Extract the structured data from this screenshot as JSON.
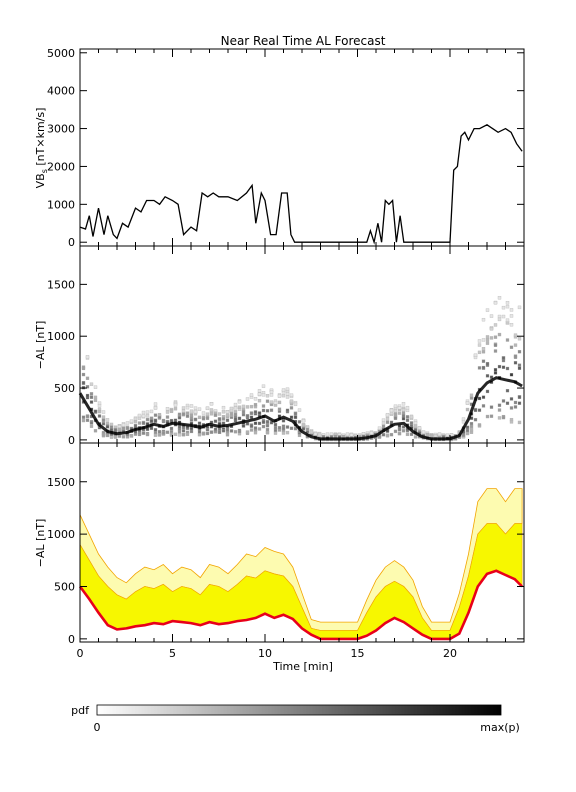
{
  "title": "Near Real Time AL Forecast",
  "x_axis": {
    "label": "Time [min]",
    "ticks": [
      "0",
      "5",
      "10",
      "15",
      "20"
    ],
    "tick_values": [
      0,
      5,
      10,
      15,
      20
    ],
    "range": [
      0,
      24
    ]
  },
  "panel1": {
    "ylabel_main": "VB",
    "ylabel_sub": "s",
    "ylabel_rest": " [nT×km/s]",
    "yticks": [
      "0",
      "1000",
      "2000",
      "3000",
      "4000",
      "5000"
    ],
    "ytick_values": [
      0,
      1000,
      2000,
      3000,
      4000,
      5000
    ],
    "ylim": [
      -100,
      5100
    ]
  },
  "panel2": {
    "ylabel": "−AL [nT]",
    "yticks": [
      "0",
      "500",
      "1000",
      "1500"
    ],
    "ytick_values": [
      0,
      500,
      1000,
      1500
    ],
    "ylim": [
      -30,
      1870
    ]
  },
  "panel3": {
    "ylabel": "−AL [nT]",
    "yticks": [
      "0",
      "500",
      "1000",
      "1500"
    ],
    "ytick_values": [
      0,
      500,
      1000,
      1500
    ],
    "ylim": [
      -30,
      1870
    ]
  },
  "colorbar": {
    "label": "pdf",
    "min_label": "0",
    "max_label": "max(p)"
  },
  "colors": {
    "median": "#e8001a",
    "band": "#f7f700",
    "band_edge": "#f2a400",
    "outer_band": "#fdfbb0",
    "vbs": "#000000"
  },
  "chart_data": [
    {
      "type": "line",
      "title": "Near Real Time AL Forecast",
      "xlabel": "Time [min]",
      "ylabel": "VBs [nT×km/s]",
      "xlim": [
        0,
        24
      ],
      "ylim": [
        -100,
        5100
      ],
      "series": [
        {
          "x": [
            0,
            0.3,
            0.5,
            0.7,
            1.0,
            1.3,
            1.5,
            1.8,
            2.0,
            2.3,
            2.6,
            3.0,
            3.3,
            3.6,
            4.0,
            4.3,
            4.6,
            5.0,
            5.3,
            5.6,
            6.0,
            6.3,
            6.6,
            6.9,
            7.2,
            7.5,
            8.0,
            8.5,
            9.0,
            9.3,
            9.5,
            9.8,
            10.0,
            10.3,
            10.6,
            10.9,
            11.2,
            11.4,
            11.6,
            12.0,
            13,
            14,
            15,
            15.5,
            15.7,
            15.9,
            16.1,
            16.3,
            16.5,
            16.7,
            16.9,
            17.1,
            17.3,
            17.5,
            18,
            19,
            19.5,
            19.7,
            20.0,
            20.2,
            20.4,
            20.6,
            20.8,
            21.0,
            21.3,
            21.6,
            22.0,
            22.3,
            22.6,
            23.0,
            23.3,
            23.6,
            23.9
          ],
          "y": [
            400,
            350,
            700,
            150,
            900,
            200,
            700,
            200,
            100,
            500,
            400,
            900,
            800,
            1100,
            1100,
            1000,
            1200,
            1100,
            1000,
            200,
            400,
            300,
            1300,
            1200,
            1300,
            1200,
            1200,
            1100,
            1300,
            1500,
            500,
            1300,
            1100,
            200,
            200,
            1300,
            1300,
            200,
            0,
            0,
            0,
            0,
            0,
            0,
            300,
            0,
            500,
            0,
            1100,
            1000,
            1100,
            0,
            700,
            0,
            0,
            0,
            0,
            0,
            0,
            1900,
            2000,
            2800,
            2900,
            2700,
            3000,
            3000,
            3100,
            3000,
            2900,
            3000,
            2900,
            2600,
            2400
          ]
        }
      ]
    },
    {
      "type": "heatmap",
      "ylabel": "−AL [nT]",
      "xlim": [
        0,
        24
      ],
      "ylim": [
        -30,
        1870
      ],
      "series": [
        {
          "name": "pdf median",
          "x": [
            0,
            0.5,
            1.0,
            1.5,
            2.0,
            2.5,
            3.0,
            3.5,
            4.0,
            4.5,
            5.0,
            5.5,
            6.0,
            6.5,
            7.0,
            7.5,
            8.0,
            8.5,
            9.0,
            9.5,
            10.0,
            10.5,
            11.0,
            11.5,
            12.0,
            12.5,
            13,
            14,
            15,
            15.5,
            16,
            16.5,
            17,
            17.5,
            18,
            18.5,
            19,
            19.5,
            20,
            20.5,
            21,
            21.5,
            22,
            22.5,
            23,
            23.5,
            23.9
          ],
          "y": [
            450,
            300,
            150,
            80,
            60,
            70,
            100,
            120,
            150,
            130,
            160,
            150,
            140,
            120,
            150,
            130,
            140,
            160,
            180,
            200,
            230,
            180,
            220,
            180,
            80,
            30,
            10,
            10,
            10,
            20,
            40,
            100,
            150,
            160,
            80,
            30,
            10,
            10,
            10,
            40,
            200,
            450,
            550,
            600,
            580,
            560,
            520
          ]
        }
      ]
    },
    {
      "type": "area",
      "ylabel": "−AL [nT]",
      "xlim": [
        0,
        24
      ],
      "ylim": [
        -30,
        1870
      ],
      "series": [
        {
          "name": "median",
          "x": [
            0,
            0.5,
            1.0,
            1.5,
            2.0,
            2.5,
            3.0,
            3.5,
            4.0,
            4.5,
            5.0,
            5.5,
            6.0,
            6.5,
            7.0,
            7.5,
            8.0,
            8.5,
            9.0,
            9.5,
            10.0,
            10.5,
            11.0,
            11.5,
            12.0,
            12.5,
            13,
            14,
            15,
            15.5,
            16,
            16.5,
            17,
            17.5,
            18,
            18.5,
            19,
            19.5,
            20,
            20.5,
            21,
            21.5,
            22,
            22.5,
            23,
            23.5,
            23.9
          ],
          "y": [
            500,
            380,
            250,
            130,
            90,
            100,
            120,
            130,
            150,
            140,
            170,
            160,
            150,
            130,
            160,
            140,
            150,
            170,
            180,
            200,
            240,
            200,
            230,
            190,
            100,
            40,
            0,
            0,
            0,
            30,
            80,
            150,
            200,
            160,
            100,
            40,
            0,
            0,
            0,
            50,
            250,
            500,
            620,
            650,
            610,
            570,
            500
          ]
        },
        {
          "name": "upper",
          "x": [
            0,
            0.5,
            1.0,
            1.5,
            2.0,
            2.5,
            3.0,
            3.5,
            4.0,
            4.5,
            5.0,
            5.5,
            6.0,
            6.5,
            7.0,
            7.5,
            8.0,
            8.5,
            9.0,
            9.5,
            10.0,
            10.5,
            11.0,
            11.5,
            12.0,
            12.5,
            13,
            14,
            15,
            15.5,
            16,
            16.5,
            17,
            17.5,
            18,
            18.5,
            19,
            19.5,
            20,
            20.5,
            21,
            21.5,
            22,
            22.5,
            23,
            23.5,
            23.9
          ],
          "y": [
            900,
            750,
            600,
            500,
            420,
            380,
            450,
            500,
            480,
            520,
            450,
            500,
            480,
            420,
            520,
            500,
            450,
            520,
            600,
            580,
            650,
            620,
            600,
            500,
            300,
            100,
            80,
            80,
            80,
            250,
            400,
            500,
            550,
            500,
            400,
            200,
            80,
            80,
            80,
            300,
            600,
            1000,
            1100,
            1100,
            1000,
            1100,
            1100
          ]
        }
      ]
    }
  ]
}
